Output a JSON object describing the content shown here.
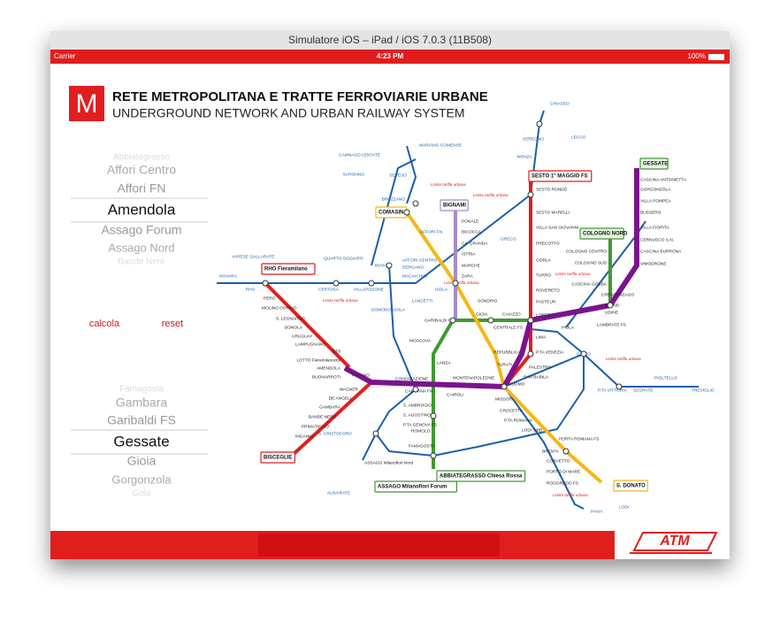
{
  "window": {
    "title": "Simulatore iOS – iPad / iOS 7.0.3 (11B508)"
  },
  "status_bar": {
    "carrier": "Carrier",
    "time": "4:23 PM",
    "battery": "100%"
  },
  "header": {
    "logo": "M",
    "title": "RETE  METROPOLITANA E TRATTE FERROVIARIE URBANE",
    "subtitle": "UNDERGROUND NETWORK AND URBAN RAILWAY SYSTEM"
  },
  "picker_from": {
    "items": [
      "Abbiategrasso",
      "Affori Centro",
      "Affori FN",
      "Amendola",
      "Assago Forum",
      "Assago Nord",
      "Bande Nere"
    ]
  },
  "buttons": {
    "calculate": "calcola",
    "reset": "reset"
  },
  "picker_to": {
    "items": [
      "Famagosta",
      "Gambara",
      "Garibaldi FS",
      "Gessate",
      "Gioia",
      "Gorgonzola",
      "Gola"
    ]
  },
  "map": {
    "terminals": [
      "RHO Fieramilano",
      "BISCEGLIE",
      "SESTO 1° MAGGIO FS",
      "GESSATE",
      "COLOGNO NORD",
      "COMASINA",
      "BIGNAMI",
      "ASSAGO Milanofiori Forum",
      "ABBIATEGRASSO Chiesa Rossa",
      "S. DONATO"
    ],
    "stations": [
      "PAGANO",
      "CONCILIAZIONE",
      "CADORNA FN",
      "CAIROLI",
      "DUOMO",
      "SAN BABILA",
      "PALESTRO",
      "P.TA VENEZIA",
      "LIMA",
      "LORETO",
      "PASTEUR",
      "ROVERETO",
      "TURRO",
      "GORLA",
      "PRECOTTO",
      "VILLA SAN GIOVANNI",
      "SESTO MARELLI",
      "SESTO RONDÒ",
      "CENTRALE FS",
      "GIOIA",
      "GARIBALDI FS",
      "MOSCOVA",
      "LANZA",
      "MONTENAPOLEONE",
      "REPUBBLICA",
      "TURATI",
      "MISSORI",
      "CROCETTA",
      "P.TA ROMANA",
      "LODI TIBB",
      "ZARA",
      "MARCHE",
      "ISTRIA",
      "CA' GRANDA",
      "BICOCCA",
      "PONALE",
      "SONDRIO",
      "CAIAZZO",
      "CASCINA GOBBA",
      "CRESCENZAGO",
      "CIMIANO",
      "UDINE",
      "LAMBRATE FS",
      "PIOLA",
      "VIMODRONE",
      "CASCINA BURRONA",
      "CERNUSCO S.N.",
      "VILLA FIORITA",
      "BUSSERO",
      "VILLA POMPEA",
      "GORGONZOLA",
      "CASCINA ANTONIETTA",
      "COLOGNO CENTRO",
      "COLOGNO SUD",
      "QT8",
      "LOTTO Fieramilanocity",
      "AMENDOLA",
      "BUONARROTI",
      "PERO",
      "MOLINO DORINO",
      "S. LEONARDO",
      "BONOLA",
      "URUGUAY",
      "LAMPUGNANO",
      "WAGNER",
      "DE ANGELI",
      "GAMBARA",
      "BANDE NERE",
      "PRIMATICCIO",
      "INGANNI",
      "S. AMBROGIO",
      "S. AGOSTINO",
      "P.TA GENOVA FS",
      "ROMOLO",
      "FAMAGOSTA",
      "ASSAGO Milanofiori Nord",
      "S. CRISTOFORO",
      "PORTA ROMANA FS",
      "BRENTA",
      "CORVETTO",
      "PORTO DI MARE",
      "ROGOREDO FS",
      "DATEO",
      "P.TA VITTORIA",
      "SEGRATE",
      "PIOLTELLO",
      "TREVIGLIO",
      "LODI",
      "PAVIA",
      "ALBAIRATE",
      "NOVARA",
      "VARESE GALLARATE",
      "RHO",
      "CERTOSA",
      "VILLAPIZZONE",
      "DOMODOSSOLA",
      "BOVISA",
      "AFFORI CENTRO",
      "DERGANO",
      "MACIACHINI",
      "ISOLA",
      "LANCETTI",
      "BRUZZANO",
      "AFFORI FN",
      "QUARTO OGGIARO",
      "SEVESO",
      "MONZA",
      "SEREGNO",
      "CHIASSO",
      "LECCO",
      "SARONNO",
      "CAMNAGO LENTATE",
      "MARIANO COMENSE",
      "GRECO"
    ],
    "notes": [
      "Limite tariffa urbana",
      "Limite tariffa urbana",
      "Limite tariffa urbana",
      "Limite tariffa urbana",
      "Limite tariffa urbana",
      "Limite tariffa urbana",
      "Limite tariffa urbana"
    ]
  },
  "footer": {
    "logo": "ATM"
  }
}
